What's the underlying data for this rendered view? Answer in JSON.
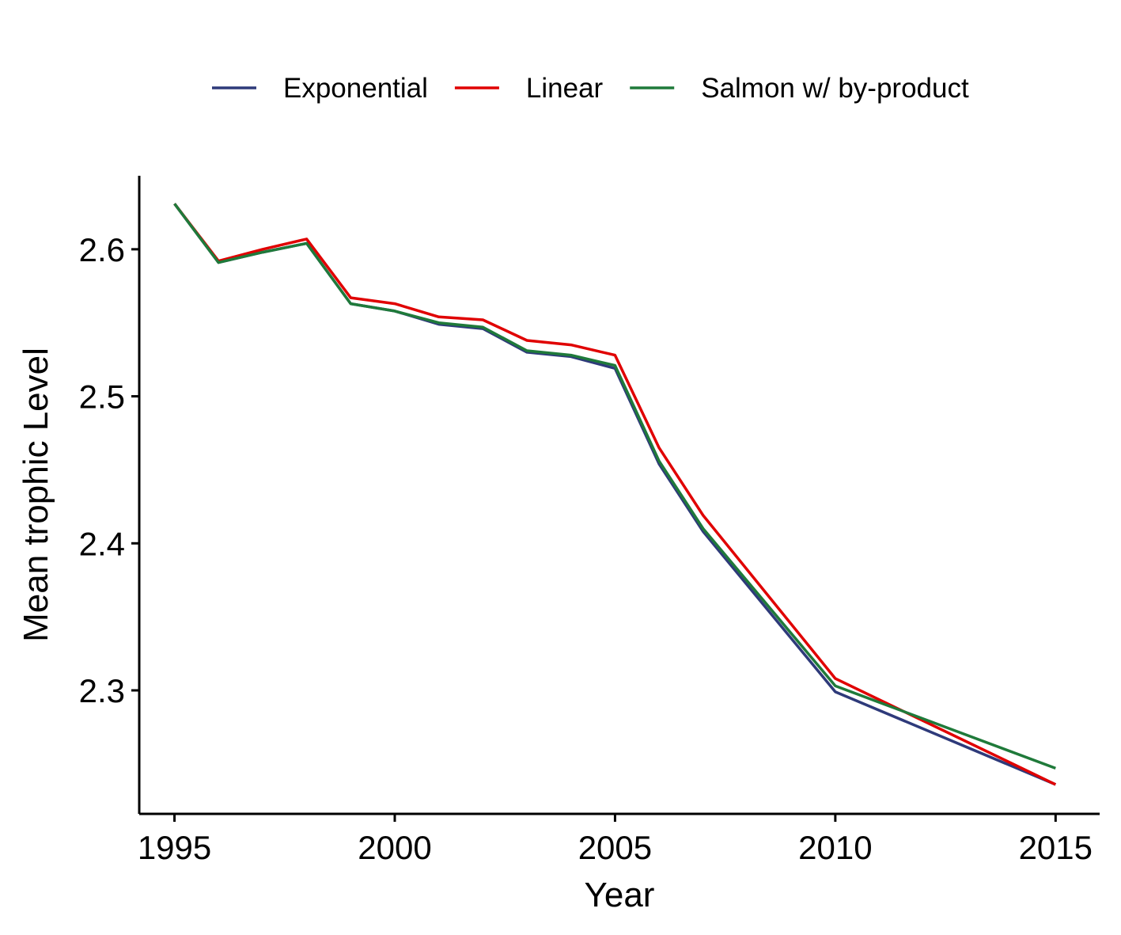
{
  "chart_data": {
    "type": "line",
    "title": "",
    "xlabel": "Year",
    "ylabel": "Mean trophic Level",
    "xlim": [
      1994.2,
      2016.0
    ],
    "ylim": [
      2.216,
      2.65
    ],
    "x_ticks": [
      1995,
      2000,
      2005,
      2010,
      2015
    ],
    "y_ticks": [
      2.3,
      2.4,
      2.5,
      2.6
    ],
    "x_tick_labels": [
      "1995",
      "2000",
      "2005",
      "2010",
      "2015"
    ],
    "y_tick_labels": [
      "2.3",
      "2.4",
      "2.5",
      "2.6"
    ],
    "grid": false,
    "legend_position": "top",
    "x": [
      1995,
      1996,
      1997,
      1998,
      1999,
      2000,
      2001,
      2002,
      2003,
      2004,
      2005,
      2006,
      2007,
      2010,
      2015
    ],
    "series": [
      {
        "name": "Exponential",
        "color": "#2e3a7a",
        "values": [
          2.631,
          2.591,
          2.598,
          2.604,
          2.563,
          2.558,
          2.549,
          2.546,
          2.53,
          2.527,
          2.519,
          2.454,
          2.408,
          2.299,
          2.236
        ]
      },
      {
        "name": "Linear",
        "color": "#e00000",
        "values": [
          2.631,
          2.592,
          2.6,
          2.607,
          2.567,
          2.563,
          2.554,
          2.552,
          2.538,
          2.535,
          2.528,
          2.465,
          2.419,
          2.308,
          2.236
        ]
      },
      {
        "name": "Salmon w/ by-product",
        "color": "#1f7a3a",
        "values": [
          2.631,
          2.591,
          2.598,
          2.604,
          2.563,
          2.558,
          2.55,
          2.547,
          2.531,
          2.528,
          2.521,
          2.456,
          2.41,
          2.303,
          2.247
        ]
      }
    ]
  }
}
